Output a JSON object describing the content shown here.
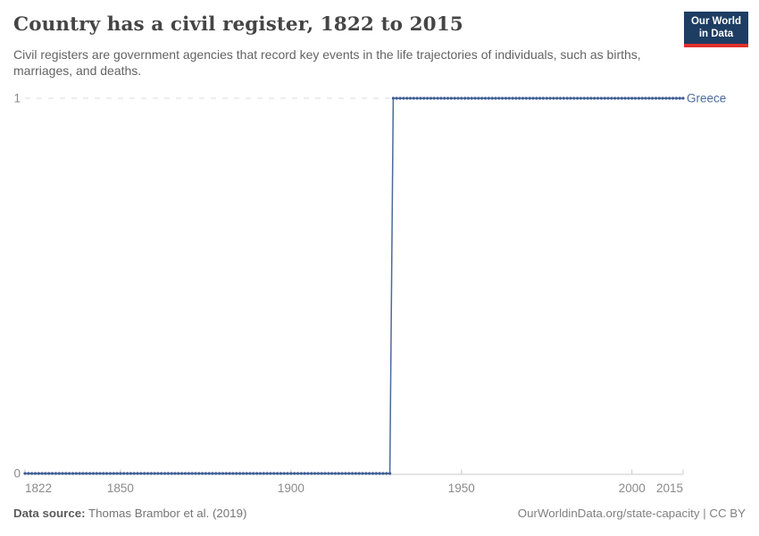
{
  "header": {
    "title": "Country has a civil register, 1822 to 2015",
    "subtitle": "Civil registers are government agencies that record key events in the life trajectories of individuals, such as births, marriages, and deaths.",
    "logo": {
      "line1": "Our World",
      "line2": "in Data",
      "bg_color": "#1d3d63",
      "accent_color": "#e0302c"
    }
  },
  "chart_data": {
    "type": "line",
    "title": "Country has a civil register, 1822 to 2015",
    "xlabel": "",
    "ylabel": "",
    "xlim": [
      1822,
      2015
    ],
    "ylim": [
      0,
      1
    ],
    "x_ticks": [
      1822,
      1850,
      1900,
      1950,
      2000,
      2015
    ],
    "y_ticks": [
      0,
      1
    ],
    "grid": "horizontal dashed gridline at y=1, solid axis line at y=0",
    "legend_position": "label at end of line",
    "colors": {
      "line": "#4c6a9c",
      "marker": "#3d5c94",
      "grid": "#dedede",
      "axis": "#c8c8c8",
      "tick_label": "#8a8a8a"
    },
    "series": [
      {
        "name": "Greece",
        "color": "#4c6a9c",
        "markers": "one dot per year",
        "description": "Binary step: value 0 for 1822-1929, value 1 for 1930-2015",
        "points": [
          {
            "x": 1822,
            "y": 0
          },
          {
            "x": 1929,
            "y": 0
          },
          {
            "x": 1930,
            "y": 1
          },
          {
            "x": 2015,
            "y": 1
          }
        ]
      }
    ]
  },
  "footer": {
    "datasource_label": "Data source:",
    "datasource_value": "Thomas Brambor et al. (2019)",
    "credit": "OurWorldinData.org/state-capacity | CC BY"
  }
}
